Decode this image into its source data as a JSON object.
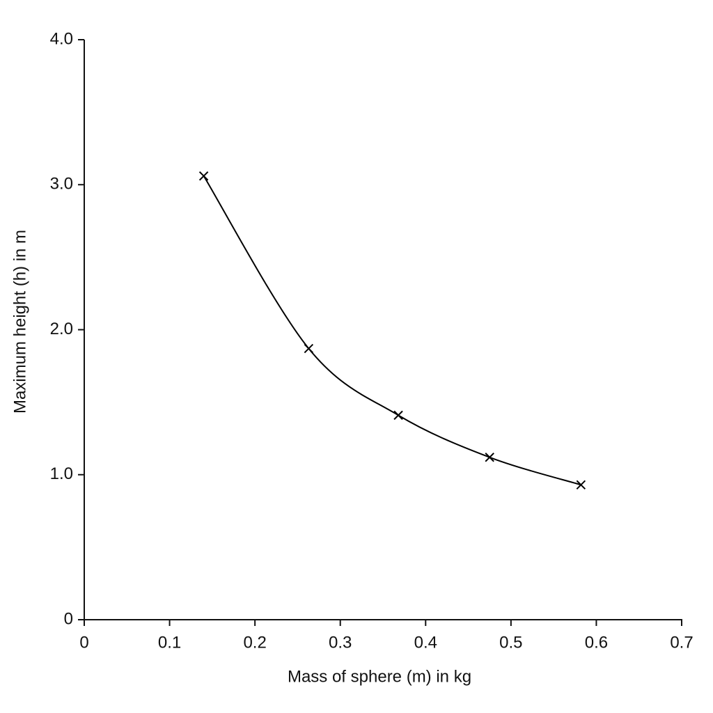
{
  "chart_data": {
    "type": "scatter",
    "xlabel": "Mass of sphere (m) in kg",
    "ylabel": "Maximum height (h) in m",
    "x": [
      0.14,
      0.263,
      0.368,
      0.475,
      0.582
    ],
    "values": [
      3.06,
      1.87,
      1.41,
      1.12,
      0.93
    ],
    "color": "#000000",
    "xlim": [
      0,
      0.7
    ],
    "xticks": [
      0,
      0.1,
      0.2,
      0.3,
      0.4,
      0.5,
      0.6,
      0.7
    ],
    "ylim": [
      0,
      4
    ],
    "yticks": [
      0,
      {
        "value": 1,
        "label": "1.0"
      },
      {
        "value": 2,
        "label": "2.0"
      },
      {
        "value": 3,
        "label": "3.0"
      },
      {
        "value": 4,
        "label": "4.0"
      }
    ],
    "grid": false
  }
}
